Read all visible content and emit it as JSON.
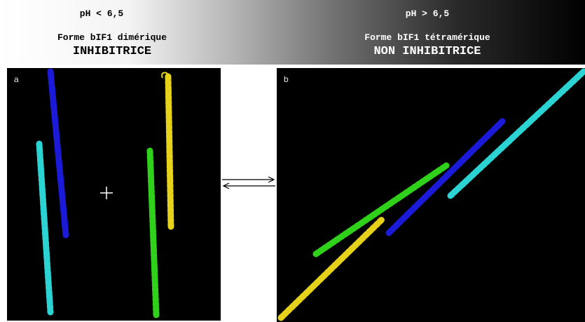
{
  "header": {
    "left": {
      "ph": "pH < 6,5",
      "form": "Forme bIF1 dimérique",
      "activity": "INHIBITRICE"
    },
    "right": {
      "ph": "pH > 6,5",
      "form": "Forme bIF1 tétramérique",
      "activity": "NON INHIBITRICE"
    }
  },
  "panels": {
    "a": {
      "label": "a",
      "plus": "+"
    },
    "b": {
      "label": "b"
    }
  },
  "colors": {
    "cyan_helix": "#2bd3d3",
    "blue_helix": "#1a1ad8",
    "yellow_helix": "#e6d21a",
    "green_helix": "#2fd11a"
  }
}
